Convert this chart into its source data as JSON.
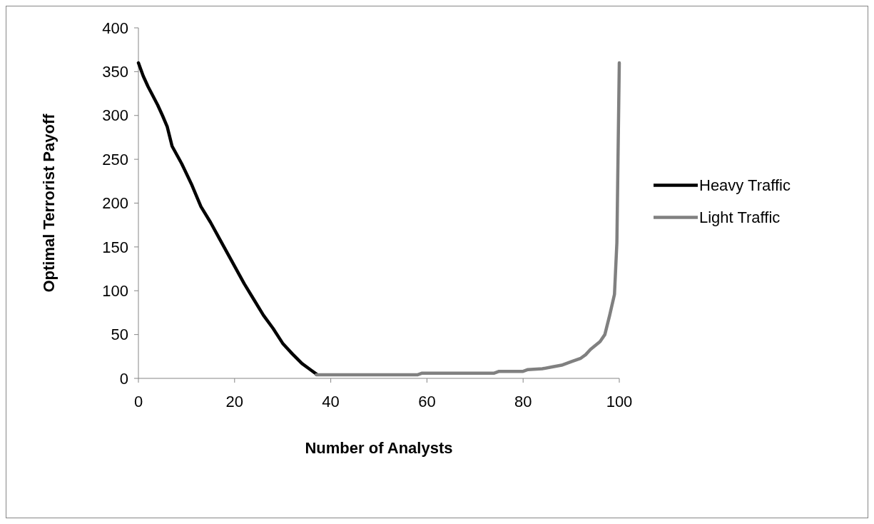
{
  "chart_data": {
    "type": "line",
    "xlabel": "Number of Analysts",
    "ylabel": "Optimal Terrorist Payoff",
    "xlim": [
      0,
      100
    ],
    "xticks": [
      0,
      20,
      40,
      60,
      80,
      100
    ],
    "ylim": [
      0,
      400
    ],
    "yticks": [
      0,
      50,
      100,
      150,
      200,
      250,
      300,
      350,
      400
    ],
    "grid": false,
    "legend": "right",
    "line_style": "solid",
    "series": [
      {
        "name": "Heavy Traffic",
        "color": "#000000",
        "x": [
          0,
          1,
          2,
          4,
          5,
          6,
          7,
          9,
          11,
          13,
          15,
          17,
          19,
          21,
          22,
          24,
          26,
          28,
          30,
          32,
          34,
          36,
          37
        ],
        "values": [
          360,
          345,
          333,
          312,
          300,
          287,
          265,
          245,
          222,
          196,
          178,
          158,
          138,
          118,
          108,
          90,
          72,
          57,
          40,
          28,
          17,
          9,
          5
        ]
      },
      {
        "name": "Light Traffic",
        "color": "#808080",
        "x": [
          37,
          58,
          59,
          74,
          75,
          80,
          81,
          84,
          86,
          88,
          90,
          92,
          93,
          94,
          96,
          97,
          98,
          99,
          99.5,
          100
        ],
        "values": [
          4,
          4,
          6,
          6,
          8,
          8,
          10,
          11,
          13,
          15,
          19,
          23,
          27,
          33,
          42,
          50,
          72,
          96,
          155,
          360
        ]
      }
    ]
  }
}
